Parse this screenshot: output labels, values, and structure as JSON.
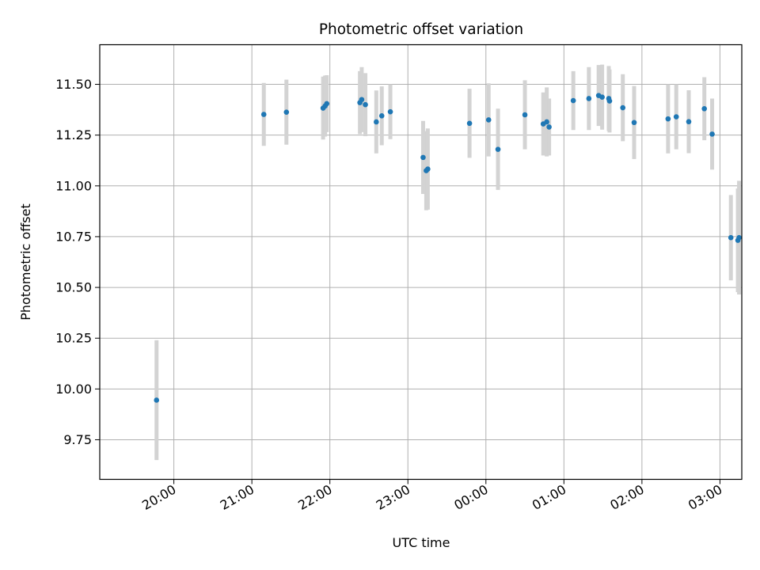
{
  "chart_data": {
    "type": "scatter",
    "title": "Photometric offset variation",
    "xlabel": "UTC time",
    "ylabel": "Photometric offset",
    "x_unit": "hours since 20:00 UTC",
    "xlim": [
      -0.95,
      7.28
    ],
    "ylim": [
      9.555,
      11.695
    ],
    "x_ticks": [
      {
        "value": 0,
        "label": "20:00"
      },
      {
        "value": 1,
        "label": "21:00"
      },
      {
        "value": 2,
        "label": "22:00"
      },
      {
        "value": 3,
        "label": "23:00"
      },
      {
        "value": 4,
        "label": "00:00"
      },
      {
        "value": 5,
        "label": "01:00"
      },
      {
        "value": 6,
        "label": "02:00"
      },
      {
        "value": 7,
        "label": "03:00"
      }
    ],
    "y_ticks": [
      {
        "value": 9.75,
        "label": "9.75"
      },
      {
        "value": 10.0,
        "label": "10.00"
      },
      {
        "value": 10.25,
        "label": "10.25"
      },
      {
        "value": 10.5,
        "label": "10.50"
      },
      {
        "value": 10.75,
        "label": "10.75"
      },
      {
        "value": 11.0,
        "label": "11.00"
      },
      {
        "value": 11.25,
        "label": "11.25"
      },
      {
        "value": 11.5,
        "label": "11.50"
      }
    ],
    "grid": true,
    "point_color": "#1f77b4",
    "errorbar_color": "#d3d3d3",
    "series": [
      {
        "points": [
          {
            "x": -0.222,
            "y": 9.945,
            "err": 0.295
          },
          {
            "x": 1.153,
            "y": 11.352,
            "err": 0.155
          },
          {
            "x": 1.443,
            "y": 11.363,
            "err": 0.16
          },
          {
            "x": 1.913,
            "y": 11.383,
            "err": 0.155
          },
          {
            "x": 1.938,
            "y": 11.393,
            "err": 0.15
          },
          {
            "x": 1.96,
            "y": 11.405,
            "err": 0.14
          },
          {
            "x": 2.385,
            "y": 11.41,
            "err": 0.155
          },
          {
            "x": 2.408,
            "y": 11.425,
            "err": 0.16
          },
          {
            "x": 2.455,
            "y": 11.4,
            "err": 0.155
          },
          {
            "x": 2.595,
            "y": 11.315,
            "err": 0.155
          },
          {
            "x": 2.665,
            "y": 11.345,
            "err": 0.145
          },
          {
            "x": 2.775,
            "y": 11.365,
            "err": 0.135
          },
          {
            "x": 3.195,
            "y": 11.14,
            "err": 0.18
          },
          {
            "x": 3.235,
            "y": 11.075,
            "err": 0.195
          },
          {
            "x": 3.255,
            "y": 11.083,
            "err": 0.2
          },
          {
            "x": 3.79,
            "y": 11.308,
            "err": 0.17
          },
          {
            "x": 4.035,
            "y": 11.325,
            "err": 0.18
          },
          {
            "x": 4.155,
            "y": 11.18,
            "err": 0.2
          },
          {
            "x": 4.5,
            "y": 11.35,
            "err": 0.17
          },
          {
            "x": 4.735,
            "y": 11.305,
            "err": 0.155
          },
          {
            "x": 4.78,
            "y": 11.315,
            "err": 0.17
          },
          {
            "x": 4.81,
            "y": 11.29,
            "err": 0.14
          },
          {
            "x": 5.12,
            "y": 11.42,
            "err": 0.145
          },
          {
            "x": 5.32,
            "y": 11.43,
            "err": 0.155
          },
          {
            "x": 5.445,
            "y": 11.445,
            "err": 0.15
          },
          {
            "x": 5.49,
            "y": 11.437,
            "err": 0.16
          },
          {
            "x": 5.575,
            "y": 11.43,
            "err": 0.16
          },
          {
            "x": 5.585,
            "y": 11.418,
            "err": 0.155
          },
          {
            "x": 5.755,
            "y": 11.385,
            "err": 0.165
          },
          {
            "x": 5.9,
            "y": 11.312,
            "err": 0.18
          },
          {
            "x": 6.335,
            "y": 11.33,
            "err": 0.17
          },
          {
            "x": 6.44,
            "y": 11.34,
            "err": 0.16
          },
          {
            "x": 6.6,
            "y": 11.316,
            "err": 0.155
          },
          {
            "x": 6.8,
            "y": 11.38,
            "err": 0.155
          },
          {
            "x": 6.9,
            "y": 11.255,
            "err": 0.175
          },
          {
            "x": 7.14,
            "y": 10.745,
            "err": 0.21
          },
          {
            "x": 7.23,
            "y": 10.732,
            "err": 0.255
          },
          {
            "x": 7.245,
            "y": 10.745,
            "err": 0.28
          }
        ]
      }
    ]
  }
}
